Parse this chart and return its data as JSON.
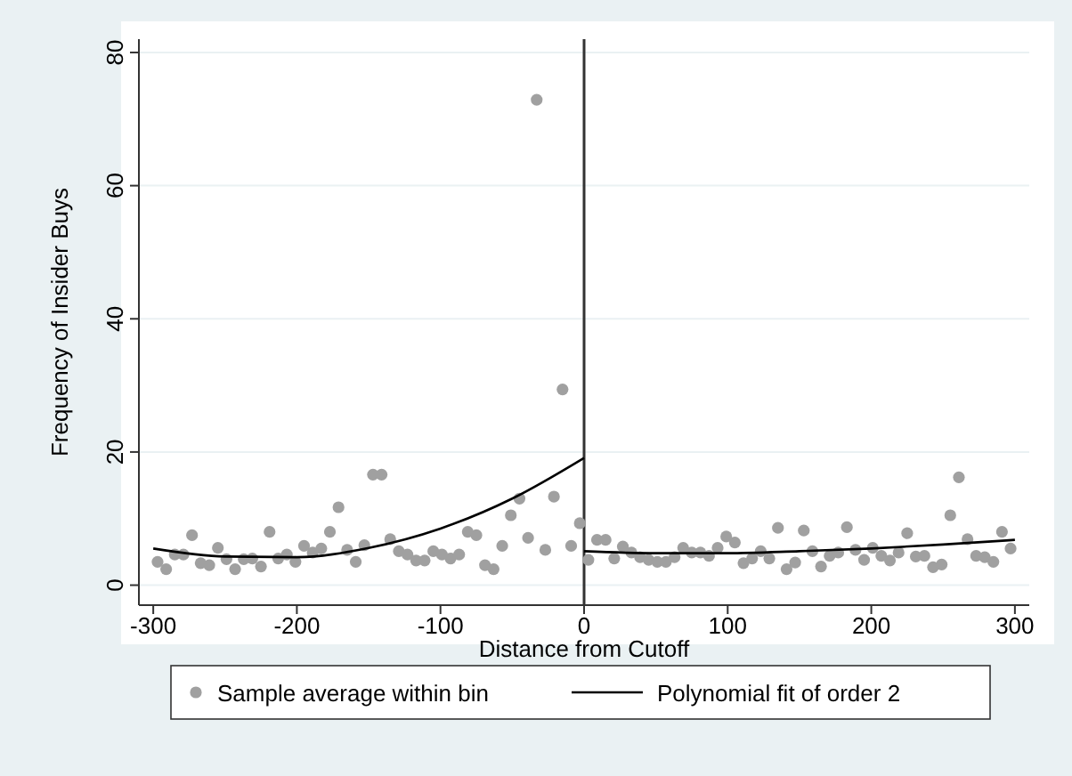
{
  "chart_data": {
    "type": "scatter",
    "xlabel": "Distance from Cutoff",
    "ylabel": "Frequency of Insider Buys",
    "xlim": [
      -310,
      310
    ],
    "xticks": [
      -300,
      -200,
      -100,
      0,
      100,
      200,
      300
    ],
    "ylim": [
      -3,
      82
    ],
    "yticks": [
      0,
      20,
      40,
      60,
      80
    ],
    "grid": "y",
    "legend": "bottom",
    "ref_lines": [
      {
        "axis": "x",
        "value": 0,
        "color": "#333333"
      }
    ],
    "series": [
      {
        "name": "Sample average within bin",
        "marker": "circle",
        "color": "#a0a0a0",
        "x": [
          -297,
          -291,
          -285,
          -279,
          -273,
          -267,
          -261,
          -255,
          -249,
          -243,
          -237,
          -231,
          -225,
          -219,
          -213,
          -207,
          -201,
          -195,
          -189,
          -183,
          -177,
          -171,
          -165,
          -159,
          -153,
          -147,
          -141,
          -135,
          -129,
          -123,
          -117,
          -111,
          -105,
          -99,
          -93,
          -87,
          -81,
          -75,
          -69,
          -63,
          -57,
          -51,
          -45,
          -39,
          -33,
          -27,
          -21,
          -15,
          -9,
          -3,
          3,
          9,
          15,
          21,
          27,
          33,
          39,
          45,
          51,
          57,
          63,
          69,
          75,
          81,
          87,
          93,
          99,
          105,
          111,
          117,
          123,
          129,
          135,
          141,
          147,
          153,
          159,
          165,
          171,
          177,
          183,
          189,
          195,
          201,
          207,
          213,
          219,
          225,
          231,
          237,
          243,
          249,
          255,
          261,
          267,
          273,
          279,
          285,
          291,
          297
        ],
        "values": [
          3.5,
          2.4,
          4.6,
          4.6,
          7.5,
          3.3,
          3.0,
          5.6,
          3.9,
          2.4,
          3.9,
          4.0,
          2.8,
          8.0,
          4.0,
          4.6,
          3.5,
          5.9,
          4.9,
          5.5,
          8.0,
          11.7,
          5.3,
          3.5,
          6.0,
          16.6,
          16.6,
          6.9,
          5.1,
          4.6,
          3.7,
          3.7,
          5.1,
          4.6,
          4.0,
          4.6,
          8.0,
          7.5,
          3.0,
          2.4,
          5.9,
          10.5,
          13.0,
          7.1,
          72.9,
          5.3,
          13.3,
          29.4,
          5.9,
          9.3,
          3.8,
          6.8,
          6.8,
          4.0,
          5.8,
          4.9,
          4.2,
          3.8,
          3.5,
          3.5,
          4.2,
          5.6,
          4.9,
          4.9,
          4.4,
          5.6,
          7.3,
          6.4,
          3.3,
          4.0,
          5.1,
          4.0,
          8.6,
          2.4,
          3.4,
          8.2,
          5.1,
          2.8,
          4.4,
          4.9,
          8.7,
          5.3,
          3.8,
          5.6,
          4.4,
          3.7,
          4.9,
          7.8,
          4.3,
          4.4,
          2.7,
          3.1,
          10.5,
          16.2,
          6.9,
          4.4,
          4.2,
          3.5,
          8.0,
          5.5
        ]
      },
      {
        "name": "Polynomial fit of order 2",
        "type": "line",
        "color": "#000000",
        "x": [
          -300,
          -250,
          -200,
          -150,
          -100,
          -50,
          0
        ],
        "values": [
          5.5,
          4.3,
          4.2,
          5.6,
          8.5,
          13.0,
          19.1
        ]
      },
      {
        "type": "line",
        "color": "#000000",
        "x": [
          0,
          50,
          100,
          150,
          200,
          250,
          300
        ],
        "values": [
          5.1,
          4.8,
          4.8,
          5.1,
          5.5,
          6.1,
          6.8
        ]
      }
    ]
  }
}
